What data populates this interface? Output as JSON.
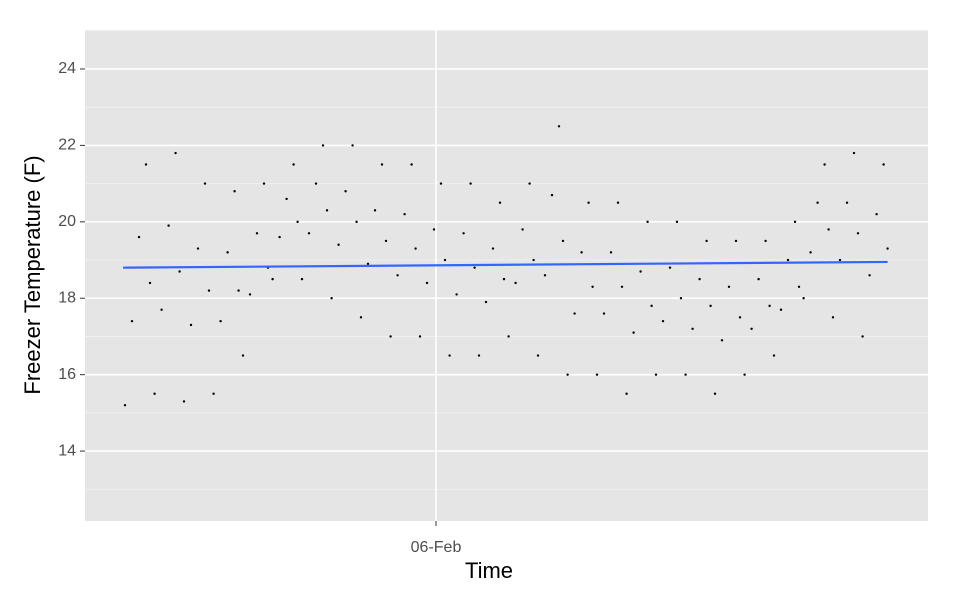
{
  "chart_data": {
    "type": "scatter",
    "x_label": "Time",
    "y_label": "Freezer Temperature (F)",
    "x": [
      4.445,
      4.48,
      4.515,
      4.55,
      4.57,
      4.593,
      4.628,
      4.663,
      4.698,
      4.718,
      4.74,
      4.775,
      4.81,
      4.845,
      4.865,
      4.888,
      4.923,
      4.958,
      4.993,
      5.013,
      5.035,
      5.07,
      5.105,
      5.14,
      5.16,
      5.183,
      5.218,
      5.253,
      5.288,
      5.308,
      5.33,
      5.365,
      5.4,
      5.435,
      5.455,
      5.478,
      5.513,
      5.548,
      5.583,
      5.603,
      5.625,
      5.66,
      5.695,
      5.73,
      5.75,
      5.773,
      5.808,
      5.843,
      5.878,
      5.898,
      5.92,
      5.955,
      5.99,
      6.025,
      6.045,
      6.068,
      6.103,
      6.138,
      6.173,
      6.193,
      6.215,
      6.25,
      6.285,
      6.32,
      6.34,
      6.363,
      6.398,
      6.433,
      6.468,
      6.488,
      6.51,
      6.545,
      6.58,
      6.615,
      6.635,
      6.658,
      6.693,
      6.728,
      6.763,
      6.783,
      6.805,
      6.84,
      6.875,
      6.91,
      6.93,
      6.953,
      6.988,
      7.023,
      7.058,
      7.078,
      7.1,
      7.135,
      7.17,
      7.205,
      7.225,
      7.248,
      7.283,
      7.318,
      7.353,
      7.373,
      7.395,
      7.43,
      7.465,
      7.5,
      7.52,
      7.543,
      7.578,
      7.613,
      7.648,
      7.668,
      7.69,
      7.725,
      7.76,
      7.795,
      7.815,
      7.838,
      7.873,
      7.908,
      7.943,
      7.963,
      7.985,
      8.02,
      8.055,
      8.09,
      8.11,
      8.133,
      8.168,
      8.203,
      8.238,
      8.258
    ],
    "values": [
      15.2,
      17.4,
      19.6,
      21.5,
      18.4,
      15.5,
      17.7,
      19.9,
      21.8,
      18.7,
      15.3,
      17.3,
      19.3,
      21.0,
      18.2,
      15.5,
      17.4,
      19.2,
      20.8,
      18.2,
      16.5,
      18.1,
      19.7,
      21.0,
      18.8,
      18.5,
      19.6,
      20.6,
      21.5,
      20.0,
      18.5,
      19.7,
      21.0,
      22.0,
      20.3,
      18.0,
      19.4,
      20.8,
      22.0,
      20.0,
      17.5,
      18.9,
      20.3,
      21.5,
      19.5,
      17.0,
      18.6,
      20.2,
      21.5,
      19.3,
      17.0,
      18.4,
      19.8,
      21.0,
      19.0,
      16.5,
      18.1,
      19.7,
      21.0,
      18.8,
      16.5,
      17.9,
      19.3,
      20.5,
      18.5,
      17.0,
      18.4,
      19.8,
      21.0,
      19.0,
      16.5,
      18.6,
      20.7,
      22.5,
      19.5,
      16.0,
      17.6,
      19.2,
      20.5,
      18.3,
      16.0,
      17.6,
      19.2,
      20.5,
      18.3,
      15.5,
      17.1,
      18.7,
      20.0,
      17.8,
      16.0,
      17.4,
      18.8,
      20.0,
      18.0,
      16.0,
      17.2,
      18.5,
      19.5,
      17.8,
      15.5,
      16.9,
      18.3,
      19.5,
      17.5,
      16.0,
      17.2,
      18.5,
      19.5,
      17.8,
      16.5,
      17.7,
      19.0,
      20.0,
      18.3,
      18.0,
      19.2,
      20.5,
      21.5,
      19.8,
      17.5,
      19.0,
      20.5,
      21.8,
      19.7,
      17.0,
      18.6,
      20.2,
      21.5,
      19.3
    ],
    "color": "#000000",
    "trend": {
      "x": [
        4.435,
        8.258
      ],
      "values": [
        18.8,
        18.95
      ],
      "color": "#3366ff"
    },
    "xlim": [
      4.245,
      8.46
    ],
    "ylim": [
      12.17,
      25.02
    ],
    "xticks": [
      {
        "value": 6,
        "label": "06-Feb"
      }
    ],
    "yticks": [
      14,
      16,
      18,
      20,
      22,
      24
    ],
    "grid": true
  }
}
